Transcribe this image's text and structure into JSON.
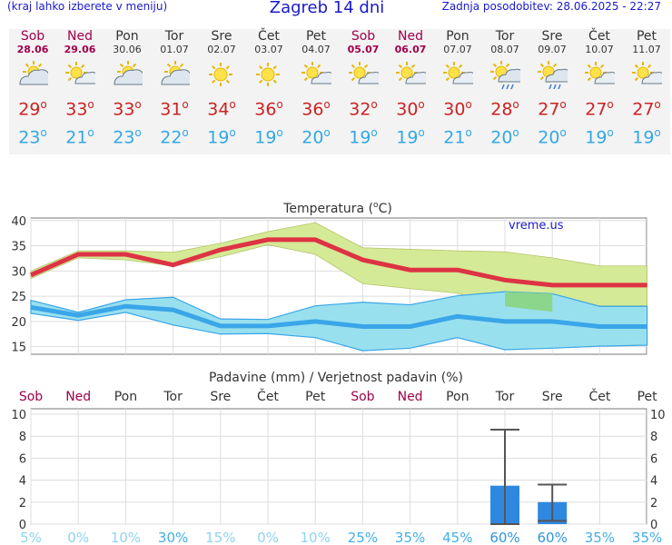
{
  "header": {
    "menu_hint": "(kraj lahko izberete v meniju)",
    "title": "Zagreb 14 dni",
    "updated": "Zadnja posodobitev: 28.06.2025 - 22:27"
  },
  "degree_symbol": "o",
  "days": [
    {
      "name": "Sob",
      "date": "28.06",
      "weekend": true,
      "icon": "partly-cloudy-sun-icon",
      "tmax": "29",
      "tmin": "23"
    },
    {
      "name": "Ned",
      "date": "29.06",
      "weekend": true,
      "icon": "sun-small-cloud-icon",
      "tmax": "33",
      "tmin": "21"
    },
    {
      "name": "Pon",
      "date": "30.06",
      "weekend": false,
      "icon": "partly-cloudy-sun-icon",
      "tmax": "33",
      "tmin": "23"
    },
    {
      "name": "Tor",
      "date": "01.07",
      "weekend": false,
      "icon": "partly-cloudy-sun-icon",
      "tmax": "31",
      "tmin": "22"
    },
    {
      "name": "Sre",
      "date": "02.07",
      "weekend": false,
      "icon": "sun-icon",
      "tmax": "34",
      "tmin": "19"
    },
    {
      "name": "Čet",
      "date": "03.07",
      "weekend": false,
      "icon": "sun-icon",
      "tmax": "36",
      "tmin": "19"
    },
    {
      "name": "Pet",
      "date": "04.07",
      "weekend": false,
      "icon": "sun-small-cloud-icon",
      "tmax": "36",
      "tmin": "20"
    },
    {
      "name": "Sob",
      "date": "05.07",
      "weekend": true,
      "icon": "sun-small-cloud-icon",
      "tmax": "32",
      "tmin": "19"
    },
    {
      "name": "Ned",
      "date": "06.07",
      "weekend": true,
      "icon": "sun-small-cloud-icon",
      "tmax": "30",
      "tmin": "19"
    },
    {
      "name": "Pon",
      "date": "07.07",
      "weekend": false,
      "icon": "sun-small-cloud-icon",
      "tmax": "30",
      "tmin": "21"
    },
    {
      "name": "Tor",
      "date": "08.07",
      "weekend": false,
      "icon": "sun-rain-cloud-icon",
      "tmax": "28",
      "tmin": "20"
    },
    {
      "name": "Sre",
      "date": "09.07",
      "weekend": false,
      "icon": "sun-rain-cloud-icon",
      "tmax": "27",
      "tmin": "20"
    },
    {
      "name": "Čet",
      "date": "10.07",
      "weekend": false,
      "icon": "sun-small-cloud-icon",
      "tmax": "27",
      "tmin": "19"
    },
    {
      "name": "Pet",
      "date": "11.07",
      "weekend": false,
      "icon": "sun-small-cloud-icon",
      "tmax": "27",
      "tmin": "19"
    }
  ],
  "colors": {
    "tmax": "#cc2222",
    "tmin": "#33a8e6",
    "weekend": "#a0004a",
    "max_band": "#d4ea96",
    "min_band": "#99e0ee",
    "overlap_band": "#8cd68c",
    "max_line": "#dd3344",
    "min_line": "#3aa6e8",
    "bar": "#2f88e0",
    "err": "#555555"
  },
  "chart_data": [
    {
      "type": "line",
      "title": "Temperatura (",
      "title_unit": "C)",
      "watermark": "vreme.us",
      "x": [
        "Sob",
        "Ned",
        "Pon",
        "Tor",
        "Sre",
        "Čet",
        "Pet",
        "Sob",
        "Ned",
        "Pon",
        "Tor",
        "Sre",
        "Čet",
        "Pet"
      ],
      "ylim": [
        13.5,
        40.5
      ],
      "yticks": [
        "15",
        "20",
        "25",
        "30",
        "35",
        "40"
      ],
      "ytick_values": [
        15,
        20,
        25,
        30,
        35,
        40
      ],
      "grid": true,
      "series": [
        {
          "role": "max",
          "values": [
            29.2,
            33.3,
            33.3,
            31.2,
            34.2,
            36.2,
            36.2,
            32.2,
            30.2,
            30.2,
            28.2,
            27.2,
            27.2,
            27.2
          ]
        },
        {
          "role": "min",
          "values": [
            22.8,
            21.2,
            23.0,
            22.3,
            19.1,
            19.1,
            20.0,
            19.0,
            19.0,
            21.0,
            20.0,
            20.0,
            19.0,
            19.0
          ]
        }
      ],
      "bands": [
        {
          "role": "max",
          "upper": [
            30.0,
            34.0,
            34.0,
            33.7,
            35.5,
            37.8,
            39.6,
            34.6,
            34.3,
            34.0,
            33.8,
            32.6,
            31.0,
            31.0
          ],
          "lower": [
            28.5,
            32.6,
            32.2,
            31.0,
            32.8,
            35.2,
            33.3,
            27.5,
            26.5,
            25.6,
            23.0,
            21.9,
            23.1,
            23.1
          ]
        },
        {
          "role": "min",
          "upper": [
            24.2,
            21.8,
            24.3,
            24.8,
            20.5,
            20.4,
            23.1,
            23.8,
            23.3,
            25.1,
            25.9,
            25.5,
            23.0,
            23.0
          ],
          "lower": [
            21.6,
            20.2,
            21.8,
            19.3,
            17.5,
            17.6,
            16.8,
            14.2,
            14.7,
            16.8,
            14.4,
            14.7,
            15.1,
            15.3
          ]
        }
      ]
    },
    {
      "type": "bar",
      "title": "Padavine (mm) / Verjetnost padavin (%)",
      "categories": [
        "Sob",
        "Ned",
        "Pon",
        "Tor",
        "Sre",
        "Čet",
        "Pet",
        "Sob",
        "Ned",
        "Pon",
        "Tor",
        "Sre",
        "Čet",
        "Pet"
      ],
      "values": [
        0,
        0,
        0,
        0,
        0,
        0,
        0,
        0,
        0,
        0,
        3.5,
        2.0,
        0,
        0
      ],
      "error_high": [
        null,
        null,
        null,
        null,
        null,
        null,
        null,
        null,
        null,
        null,
        8.6,
        3.6,
        null,
        null
      ],
      "error_low": [
        null,
        null,
        null,
        null,
        null,
        null,
        null,
        null,
        null,
        null,
        0,
        0.3,
        null,
        null
      ],
      "probability": [
        "5%",
        "0%",
        "10%",
        "30%",
        "15%",
        "0%",
        "10%",
        "25%",
        "35%",
        "45%",
        "60%",
        "60%",
        "35%",
        "35%"
      ],
      "ylim": [
        0,
        10.5
      ],
      "yticks": [
        "0",
        "2",
        "4",
        "6",
        "8",
        "10"
      ],
      "ytick_values": [
        0,
        2,
        4,
        6,
        8,
        10
      ],
      "grid": true
    }
  ]
}
